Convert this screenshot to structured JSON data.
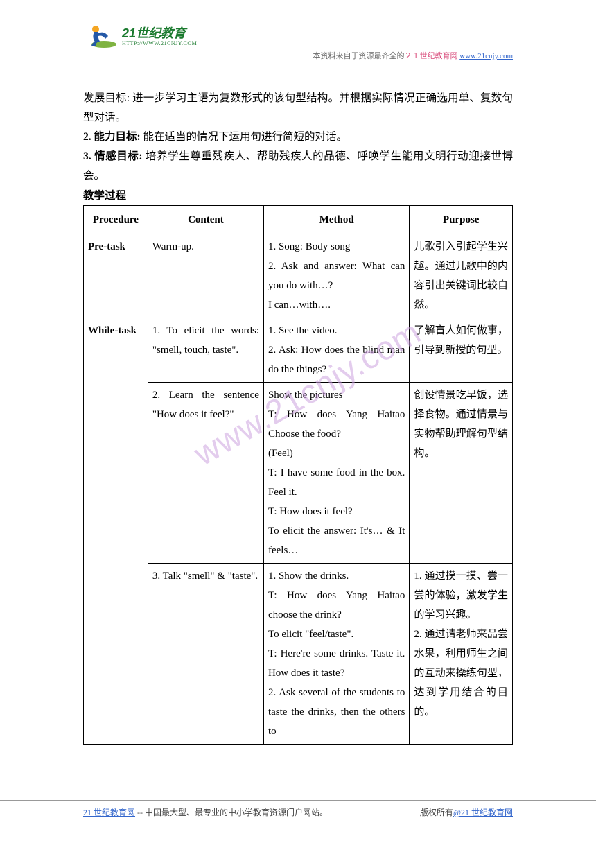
{
  "header": {
    "logo_cn": "21世纪教育",
    "logo_en": "HTTP://WWW.21CNJY.COM",
    "prefix": "本资料来自于资源最齐全的",
    "brand": "２１世纪教育网",
    "url": "www.21cnjy.com"
  },
  "intro": {
    "line1": "发展目标: 进一步学习主语为复数形式的该句型结构。并根据实际情况正确选用单、复数句型对话。",
    "line2_label": "2. 能力目标:",
    "line2_text": " 能在适当的情况下运用句进行简短的对话。",
    "line3_label": "3. 情感目标:",
    "line3_text": " 培养学生尊重残疾人、帮助残疾人的品德、呼唤学生能用文明行动迎接世博会。",
    "heading": "教学过程"
  },
  "table": {
    "headers": [
      "Procedure",
      "Content",
      "Method",
      "Purpose"
    ],
    "rows": [
      {
        "proc": "Pre-task",
        "content": "Warm-up.",
        "method": "1. Song: Body song\n2. Ask and answer: What can you do with…?\nI can…with….",
        "purpose": "儿歌引入引起学生兴趣。通过儿歌中的内容引出关键词比较自然。"
      },
      {
        "proc": "While-task",
        "proc_rowspan": 3,
        "content": "1. To elicit the words: \"smell, touch, taste\".",
        "method": "1. See the video.\n2. Ask: How does the blind man do the things?",
        "purpose": "了解盲人如何做事，引导到新授的句型。"
      },
      {
        "content": "2. Learn the sentence \"How does it feel?\"",
        "method": "Show the pictures\nT: How does Yang Haitao Choose the food?\n(Feel)\nT: I have some food in the box. Feel it.\nT: How does it feel?\nTo elicit the answer: It's… & It feels…",
        "purpose": "创设情景吃早饭，选择食物。通过情景与实物帮助理解句型结构。"
      },
      {
        "content": "3. Talk \"smell\" & \"taste\".",
        "method": "1. Show the drinks.\nT: How does Yang Haitao choose the drink?\nTo elicit \"feel/taste\".\nT: Here're some drinks. Taste it. How does it taste?\n2. Ask several of the students to taste the drinks, then the others to",
        "purpose": "1. 通过摸一摸、尝一尝的体验，激发学生的学习兴趣。\n2. 通过请老师来品尝水果，利用师生之间的互动来操练句型，达到学用结合的目的。"
      }
    ]
  },
  "watermark": "www.21cnjy.com",
  "footer": {
    "left_a": "21 世纪教育网",
    "left_b": " -- 中国最大型、最专业的中小学教育资源门户网站。",
    "right_a": "版权所有",
    "right_b": "@21 世纪教育网"
  },
  "colors": {
    "brand_pink": "#d94a7a",
    "link_blue": "#3366cc",
    "logo_green": "#1a7a2e",
    "watermark": "#cda3e0"
  }
}
